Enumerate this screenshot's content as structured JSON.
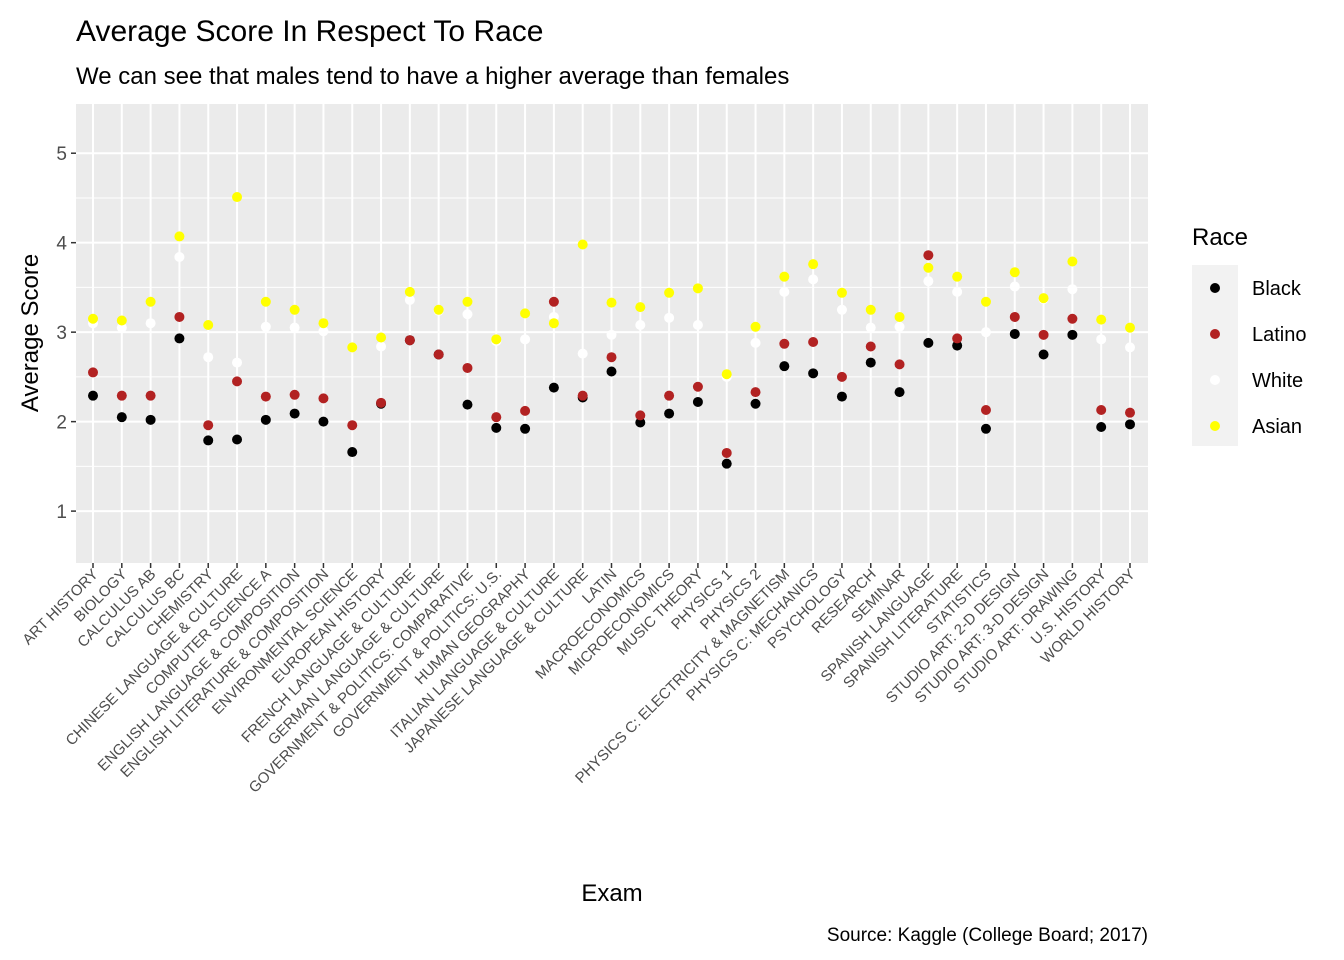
{
  "chart_data": {
    "type": "scatter",
    "title": "Average Score In Respect To Race",
    "subtitle": "We can see that males tend to have a higher average than females",
    "xlabel": "Exam",
    "ylabel": "Average Score",
    "caption": "Source: Kaggle (College Board; 2017)",
    "ylim": [
      0.42,
      5.55
    ],
    "yticks": [
      1,
      2,
      3,
      4,
      5
    ],
    "grid": true,
    "legend": {
      "title": "Race",
      "position": "right"
    },
    "categories": [
      "ART HISTORY",
      "BIOLOGY",
      "CALCULUS AB",
      "CALCULUS BC",
      "CHEMISTRY",
      "CHINESE LANGUAGE & CULTURE",
      "COMPUTER SCIENCE A",
      "ENGLISH LANGUAGE & COMPOSITION",
      "ENGLISH LITERATURE & COMPOSITION",
      "ENVIRONMENTAL SCIENCE",
      "EUROPEAN HISTORY",
      "FRENCH LANGUAGE & CULTURE",
      "GERMAN LANGUAGE & CULTURE",
      "GOVERNMENT & POLITICS: COMPARATIVE",
      "GOVERNMENT & POLITICS: U.S.",
      "HUMAN GEOGRAPHY",
      "ITALIAN LANGUAGE & CULTURE",
      "JAPANESE LANGUAGE & CULTURE",
      "LATIN",
      "MACROECONOMICS",
      "MICROECONOMICS",
      "MUSIC THEORY",
      "PHYSICS 1",
      "PHYSICS 2",
      "PHYSICS C: ELECTRICITY & MAGNETISM",
      "PHYSICS C: MECHANICS",
      "PSYCHOLOGY",
      "RESEARCH",
      "SEMINAR",
      "SPANISH LANGUAGE",
      "SPANISH LITERATURE",
      "STATISTICS",
      "STUDIO ART: 2-D DESIGN",
      "STUDIO ART: 3-D DESIGN",
      "STUDIO ART: DRAWING",
      "U.S. HISTORY",
      "WORLD HISTORY"
    ],
    "series": [
      {
        "name": "Black",
        "color": "#000000",
        "values": [
          2.29,
          2.05,
          2.02,
          2.93,
          1.79,
          1.8,
          2.02,
          2.09,
          2.0,
          1.66,
          2.2,
          2.91,
          2.75,
          2.19,
          1.93,
          1.92,
          2.38,
          2.27,
          2.56,
          1.99,
          2.09,
          2.22,
          1.53,
          2.2,
          2.62,
          2.54,
          2.28,
          2.66,
          2.33,
          2.88,
          2.85,
          1.92,
          2.98,
          2.75,
          2.97,
          1.94,
          1.97
        ]
      },
      {
        "name": "Latino",
        "color": "#b22222",
        "values": [
          2.55,
          2.29,
          2.29,
          3.17,
          1.96,
          2.45,
          2.28,
          2.3,
          2.26,
          1.96,
          2.21,
          2.91,
          2.75,
          2.6,
          2.05,
          2.12,
          3.34,
          2.29,
          2.72,
          2.07,
          2.29,
          2.39,
          1.65,
          2.33,
          2.87,
          2.89,
          2.5,
          2.84,
          2.64,
          3.86,
          2.93,
          2.13,
          3.17,
          2.97,
          3.15,
          2.13,
          2.1
        ]
      },
      {
        "name": "White",
        "color": "#ffffff",
        "values": [
          3.1,
          3.05,
          3.1,
          3.84,
          2.72,
          2.66,
          3.06,
          3.05,
          3.01,
          2.83,
          2.84,
          3.36,
          3.24,
          3.2,
          2.9,
          2.92,
          3.17,
          2.76,
          2.97,
          3.08,
          3.16,
          3.08,
          2.5,
          2.88,
          3.45,
          3.59,
          3.25,
          3.05,
          3.06,
          3.57,
          3.45,
          3.0,
          3.51,
          3.37,
          3.48,
          2.92,
          2.83
        ]
      },
      {
        "name": "Asian",
        "color": "#ffff00",
        "values": [
          3.15,
          3.13,
          3.34,
          4.07,
          3.08,
          4.51,
          3.34,
          3.25,
          3.1,
          2.83,
          2.94,
          3.45,
          3.25,
          3.34,
          2.92,
          3.21,
          3.1,
          3.98,
          3.33,
          3.28,
          3.44,
          3.49,
          2.53,
          3.06,
          3.62,
          3.76,
          3.44,
          3.25,
          3.17,
          3.72,
          3.62,
          3.34,
          3.67,
          3.38,
          3.79,
          3.14,
          3.05
        ]
      }
    ]
  }
}
